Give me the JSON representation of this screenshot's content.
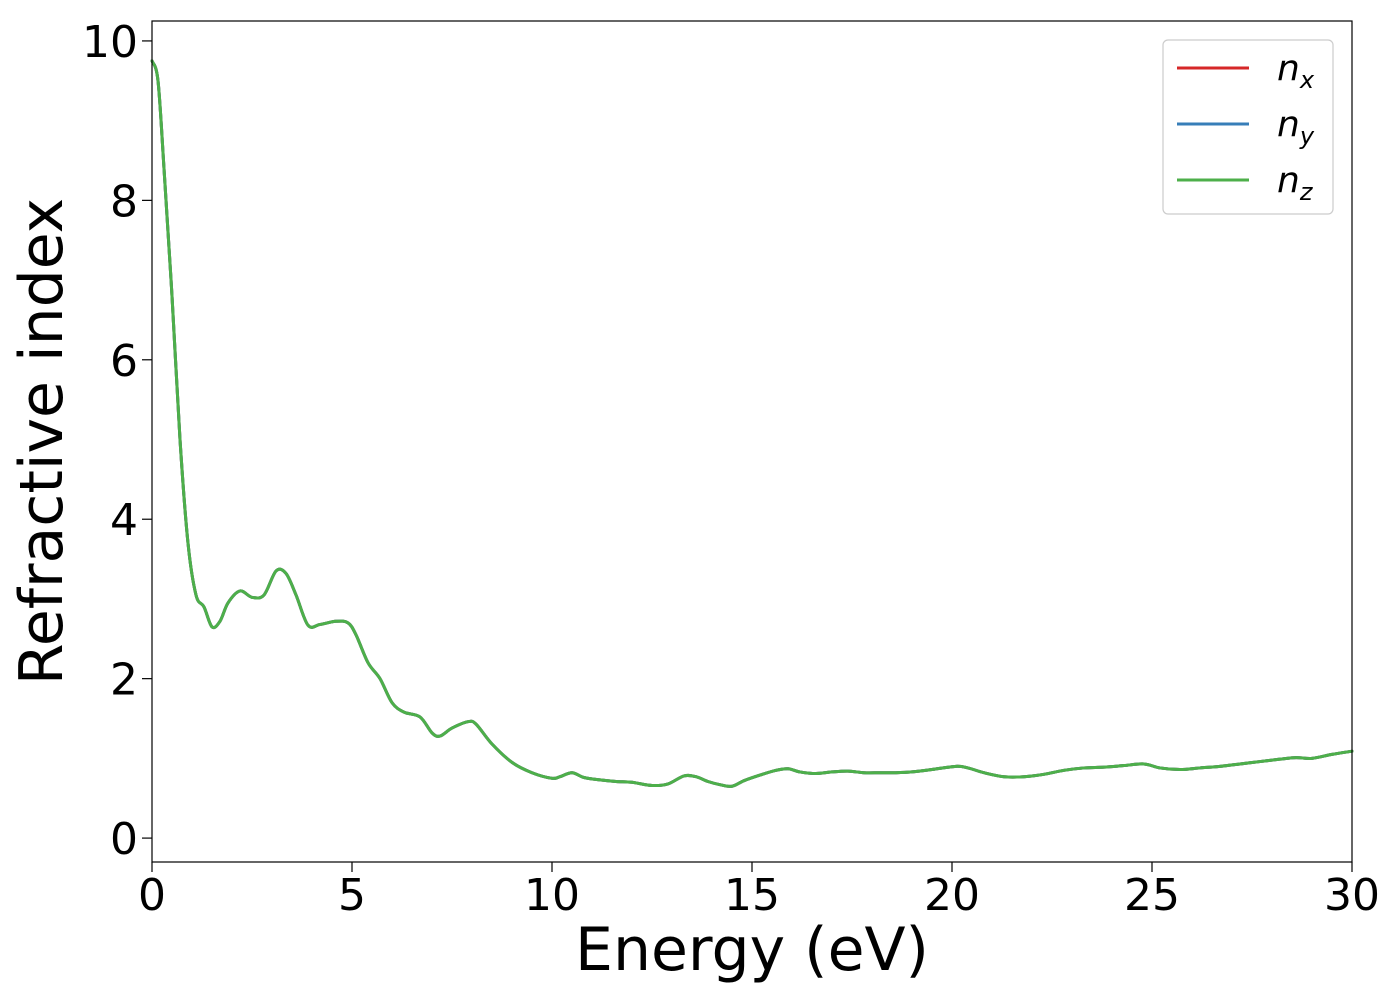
{
  "chart_data": {
    "type": "line",
    "title": "",
    "xlabel": "Energy (eV)",
    "ylabel": "Refractive index",
    "xlim": [
      0,
      30
    ],
    "ylim": [
      -0.3,
      10.25
    ],
    "xticks": [
      0,
      5,
      10,
      15,
      20,
      25,
      30
    ],
    "yticks": [
      0,
      2,
      4,
      6,
      8,
      10
    ],
    "grid": false,
    "legend_position": "top-right",
    "x": [
      0,
      0.15,
      0.3,
      0.5,
      0.7,
      0.9,
      1.1,
      1.3,
      1.5,
      1.7,
      1.9,
      2.2,
      2.5,
      2.8,
      3.1,
      3.35,
      3.6,
      3.9,
      4.2,
      4.6,
      4.9,
      5.1,
      5.4,
      5.7,
      6.0,
      6.3,
      6.7,
      7.0,
      7.2,
      7.5,
      7.9,
      8.1,
      8.5,
      9.0,
      9.5,
      10.0,
      10.2,
      10.5,
      10.8,
      11.2,
      11.6,
      12.0,
      12.5,
      12.9,
      13.3,
      13.6,
      13.9,
      14.2,
      14.5,
      14.8,
      15.2,
      15.6,
      15.9,
      16.2,
      16.6,
      17.0,
      17.4,
      17.8,
      18.2,
      18.6,
      19.0,
      19.5,
      20.1,
      20.4,
      20.8,
      21.3,
      21.8,
      22.3,
      22.8,
      23.3,
      23.8,
      24.3,
      24.8,
      25.2,
      25.7,
      26.2,
      26.7,
      27.2,
      27.7,
      28.2,
      28.6,
      29.0,
      29.5,
      30.0
    ],
    "series": [
      {
        "name": "n_x",
        "color": "#d62728",
        "values": [
          9.75,
          9.5,
          8.4,
          6.8,
          5.0,
          3.7,
          3.05,
          2.9,
          2.65,
          2.72,
          2.95,
          3.1,
          3.02,
          3.05,
          3.35,
          3.32,
          3.05,
          2.67,
          2.68,
          2.72,
          2.7,
          2.55,
          2.2,
          2.0,
          1.7,
          1.58,
          1.52,
          1.32,
          1.28,
          1.38,
          1.46,
          1.43,
          1.18,
          0.95,
          0.82,
          0.75,
          0.77,
          0.82,
          0.76,
          0.73,
          0.71,
          0.7,
          0.66,
          0.68,
          0.78,
          0.77,
          0.71,
          0.67,
          0.65,
          0.72,
          0.79,
          0.85,
          0.87,
          0.83,
          0.81,
          0.83,
          0.84,
          0.82,
          0.82,
          0.82,
          0.83,
          0.86,
          0.9,
          0.88,
          0.82,
          0.77,
          0.77,
          0.8,
          0.85,
          0.88,
          0.89,
          0.91,
          0.93,
          0.88,
          0.86,
          0.88,
          0.9,
          0.93,
          0.96,
          0.99,
          1.01,
          1.0,
          1.05,
          1.09
        ]
      },
      {
        "name": "n_y",
        "color": "#377eb8",
        "values": [
          9.75,
          9.5,
          8.4,
          6.8,
          5.0,
          3.7,
          3.05,
          2.9,
          2.65,
          2.72,
          2.95,
          3.1,
          3.02,
          3.05,
          3.35,
          3.32,
          3.05,
          2.67,
          2.68,
          2.72,
          2.7,
          2.55,
          2.2,
          2.0,
          1.7,
          1.58,
          1.52,
          1.32,
          1.28,
          1.38,
          1.46,
          1.43,
          1.18,
          0.95,
          0.82,
          0.75,
          0.77,
          0.82,
          0.76,
          0.73,
          0.71,
          0.7,
          0.66,
          0.68,
          0.78,
          0.77,
          0.71,
          0.67,
          0.65,
          0.72,
          0.79,
          0.85,
          0.87,
          0.83,
          0.81,
          0.83,
          0.84,
          0.82,
          0.82,
          0.82,
          0.83,
          0.86,
          0.9,
          0.88,
          0.82,
          0.77,
          0.77,
          0.8,
          0.85,
          0.88,
          0.89,
          0.91,
          0.93,
          0.88,
          0.86,
          0.88,
          0.9,
          0.93,
          0.96,
          0.99,
          1.01,
          1.0,
          1.05,
          1.09
        ]
      },
      {
        "name": "n_z",
        "color": "#4daf4a",
        "values": [
          9.75,
          9.5,
          8.4,
          6.8,
          5.0,
          3.7,
          3.05,
          2.9,
          2.65,
          2.72,
          2.95,
          3.1,
          3.02,
          3.05,
          3.35,
          3.32,
          3.05,
          2.67,
          2.68,
          2.72,
          2.7,
          2.55,
          2.2,
          2.0,
          1.7,
          1.58,
          1.52,
          1.32,
          1.28,
          1.38,
          1.46,
          1.43,
          1.18,
          0.95,
          0.82,
          0.75,
          0.77,
          0.82,
          0.76,
          0.73,
          0.71,
          0.7,
          0.66,
          0.68,
          0.78,
          0.77,
          0.71,
          0.67,
          0.65,
          0.72,
          0.79,
          0.85,
          0.87,
          0.83,
          0.81,
          0.83,
          0.84,
          0.82,
          0.82,
          0.82,
          0.83,
          0.86,
          0.9,
          0.88,
          0.82,
          0.77,
          0.77,
          0.8,
          0.85,
          0.88,
          0.89,
          0.91,
          0.93,
          0.88,
          0.86,
          0.88,
          0.9,
          0.93,
          0.96,
          0.99,
          1.01,
          1.0,
          1.05,
          1.09
        ]
      }
    ],
    "legend": [
      {
        "base": "n",
        "sub": "x",
        "color": "#d62728"
      },
      {
        "base": "n",
        "sub": "y",
        "color": "#377eb8"
      },
      {
        "base": "n",
        "sub": "z",
        "color": "#4daf4a"
      }
    ]
  }
}
